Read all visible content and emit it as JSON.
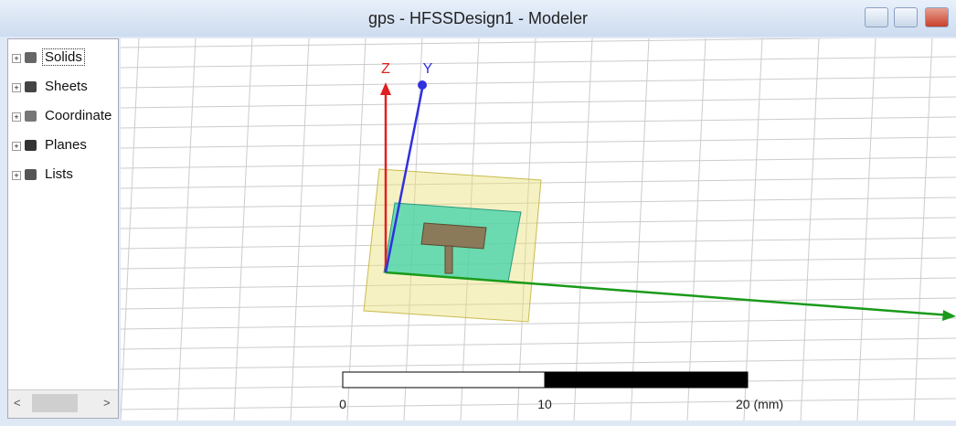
{
  "window": {
    "title": "gps - HFSSDesign1 - Modeler"
  },
  "tree": {
    "items": [
      "Solids",
      "Sheets",
      "Coordinate",
      "Planes",
      "Lists"
    ]
  },
  "axes": {
    "z": "Z",
    "y": "Y"
  },
  "scale_bar": {
    "labels": [
      "0",
      "10",
      "20 (mm)"
    ]
  }
}
